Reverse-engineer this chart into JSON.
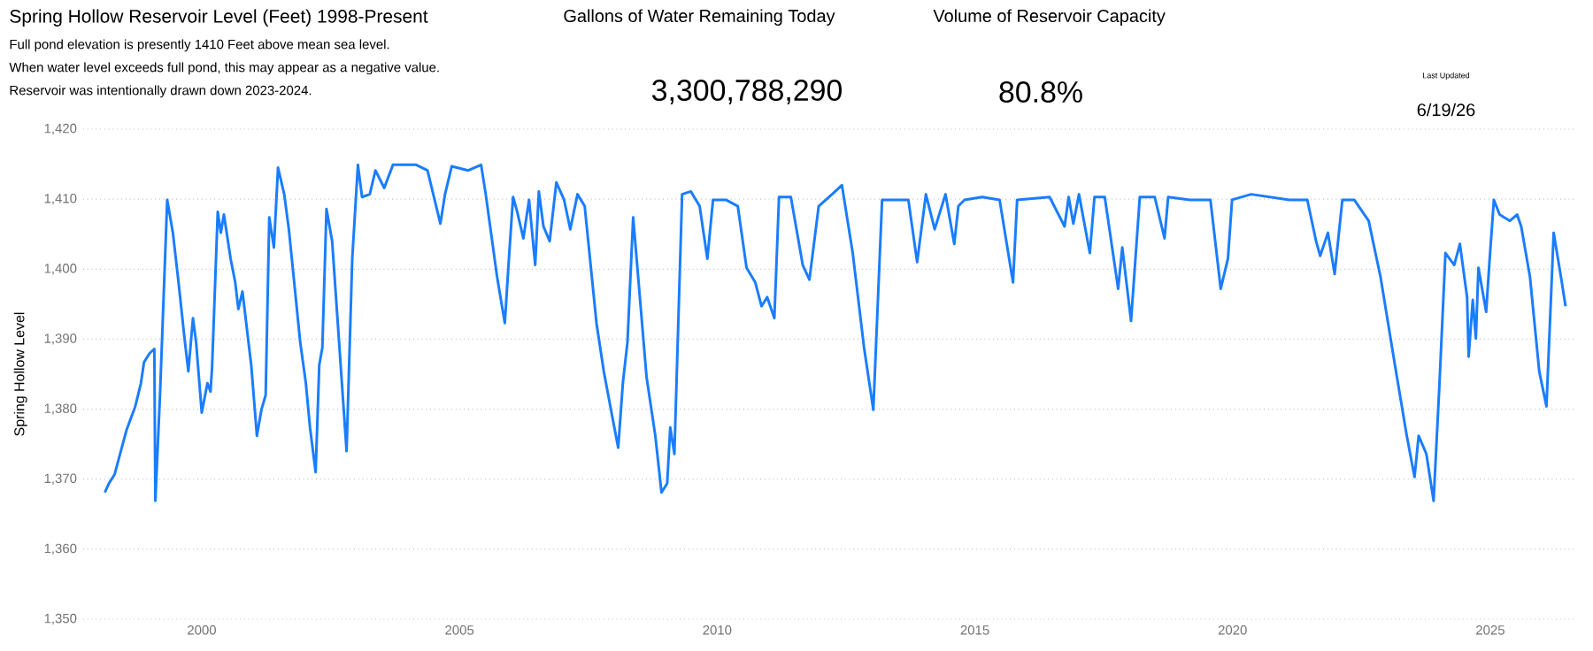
{
  "chart_data": {
    "type": "line",
    "title": "Spring Hollow Reservoir Level (Feet) 1998-Present",
    "ylabel": "Spring Hollow Level",
    "annotations": [
      "Full pond elevation is presently 1410 Feet above mean sea level.",
      "When water level exceeds full pond, this may appear as a negative value.",
      "Reservoir was intentionally drawn down 2023-2024.",
      "Gallons of Water Remaining Today",
      "3,300,788,290",
      "Volume of Reservoir Capacity",
      "80.8%",
      "Last Updated",
      "6/19/26"
    ],
    "xlim": [
      1997.7,
      2026.65
    ],
    "xticks": [
      2000,
      2005,
      2010,
      2015,
      2020,
      2025
    ],
    "ylim": [
      1350,
      1420
    ],
    "yticks": [
      {
        "value": 1350,
        "label": "1,350"
      },
      {
        "value": 1360,
        "label": "1,360"
      },
      {
        "value": 1370,
        "label": "1,370"
      },
      {
        "value": 1380,
        "label": "1,380"
      },
      {
        "value": 1390,
        "label": "1,390"
      },
      {
        "value": 1400,
        "label": "1,400"
      },
      {
        "value": 1410,
        "label": "1,410"
      },
      {
        "value": 1420,
        "label": "1,420"
      }
    ],
    "grid": "y",
    "series": [
      {
        "color": "#1a7dff",
        "x": [
          1998.12,
          1998.2,
          1998.31,
          1998.43,
          1998.54,
          1998.71,
          1998.82,
          1998.88,
          1998.99,
          1999.08,
          1999.1,
          1999.19,
          1999.33,
          1999.44,
          1999.55,
          1999.66,
          1999.74,
          1999.83,
          1999.89,
          2000.0,
          2000.11,
          2000.17,
          2000.2,
          2000.31,
          2000.37,
          2000.43,
          2000.56,
          2000.65,
          2000.71,
          2000.79,
          2000.96,
          2001.07,
          2001.16,
          2001.24,
          2001.31,
          2001.4,
          2001.48,
          2001.6,
          2001.69,
          2001.91,
          2002.02,
          2002.1,
          2002.21,
          2002.28,
          2002.34,
          2002.42,
          2002.53,
          2002.81,
          2002.92,
          2003.03,
          2003.11,
          2003.26,
          2003.37,
          2003.54,
          2003.71,
          2004.16,
          2004.38,
          2004.63,
          2004.72,
          2004.85,
          2005.17,
          2005.42,
          2005.51,
          2005.73,
          2005.88,
          2005.96,
          2006.04,
          2006.12,
          2006.24,
          2006.35,
          2006.47,
          2006.54,
          2006.63,
          2006.75,
          2006.88,
          2007.03,
          2007.15,
          2007.29,
          2007.43,
          2007.66,
          2007.8,
          2007.95,
          2008.08,
          2008.17,
          2008.26,
          2008.37,
          2008.63,
          2008.8,
          2008.92,
          2009.03,
          2009.09,
          2009.17,
          2009.32,
          2009.49,
          2009.66,
          2009.81,
          2009.92,
          2010.17,
          2010.4,
          2010.57,
          2010.74,
          2010.86,
          2010.97,
          2011.11,
          2011.2,
          2011.43,
          2011.66,
          2011.79,
          2011.97,
          2012.23,
          2012.42,
          2012.63,
          2012.85,
          2013.03,
          2013.2,
          2013.71,
          2013.88,
          2014.05,
          2014.22,
          2014.43,
          2014.6,
          2014.68,
          2014.8,
          2015.14,
          2015.48,
          2015.74,
          2015.82,
          2016.45,
          2016.74,
          2016.82,
          2016.91,
          2017.02,
          2017.23,
          2017.32,
          2017.52,
          2017.78,
          2017.86,
          2018.03,
          2018.2,
          2018.49,
          2018.68,
          2018.75,
          2019.17,
          2019.57,
          2019.77,
          2019.91,
          2019.99,
          2020.36,
          2021.1,
          2021.45,
          2021.62,
          2021.7,
          2021.85,
          2021.98,
          2022.13,
          2022.36,
          2022.64,
          2022.87,
          2023.15,
          2023.38,
          2023.53,
          2023.61,
          2023.76,
          2023.9,
          2024.01,
          2024.13,
          2024.3,
          2024.41,
          2024.55,
          2024.58,
          2024.66,
          2024.72,
          2024.77,
          2024.92,
          2024.98,
          2025.07,
          2025.18,
          2025.38,
          2025.52,
          2025.6,
          2025.77,
          2025.95,
          2026.09,
          2026.23,
          2026.38,
          2026.46
        ],
        "values": [
          1368.1,
          1369.4,
          1370.7,
          1374,
          1377,
          1380.4,
          1383.7,
          1386.7,
          1388,
          1388.6,
          1366.9,
          1382,
          1409.9,
          1405.2,
          1398.1,
          1390.5,
          1385.4,
          1393,
          1389.6,
          1379.5,
          1383.7,
          1382.5,
          1385.9,
          1408.2,
          1405.2,
          1407.8,
          1401.5,
          1398.1,
          1394.3,
          1396.8,
          1386.3,
          1376.2,
          1380,
          1382,
          1407.4,
          1403.1,
          1414.5,
          1410.7,
          1405.7,
          1389.6,
          1383.7,
          1377.4,
          1371,
          1386.3,
          1388.8,
          1408.6,
          1404,
          1374,
          1401.5,
          1414.9,
          1410.3,
          1410.7,
          1414.1,
          1411.6,
          1414.9,
          1414.9,
          1414.1,
          1406.5,
          1410.7,
          1414.7,
          1414.1,
          1414.9,
          1410.7,
          1398.9,
          1392.3,
          1401.5,
          1410.3,
          1408.2,
          1404.4,
          1409.9,
          1400.6,
          1411.1,
          1406.1,
          1404,
          1412.4,
          1409.9,
          1405.7,
          1410.7,
          1409,
          1392.2,
          1385.4,
          1379.5,
          1374.5,
          1383.7,
          1389.6,
          1407.4,
          1384.6,
          1376.2,
          1368.1,
          1369.4,
          1377.4,
          1373.6,
          1410.7,
          1411.1,
          1409,
          1401.5,
          1409.9,
          1409.9,
          1409,
          1400.2,
          1398.1,
          1394.7,
          1396,
          1393,
          1410.3,
          1410.3,
          1400.6,
          1398.5,
          1409,
          1410.7,
          1412,
          1402.3,
          1388.8,
          1379.9,
          1409.9,
          1409.9,
          1401,
          1410.7,
          1405.7,
          1410.7,
          1403.6,
          1409,
          1409.9,
          1410.3,
          1409.9,
          1398.1,
          1409.9,
          1410.3,
          1406.1,
          1410.3,
          1406.5,
          1410.7,
          1402.3,
          1410.3,
          1410.3,
          1397.2,
          1403.1,
          1392.6,
          1410.3,
          1410.3,
          1404.4,
          1410.3,
          1409.9,
          1409.9,
          1397.2,
          1401.5,
          1409.9,
          1410.7,
          1409.9,
          1409.9,
          1404,
          1401.9,
          1405.2,
          1399.3,
          1409.9,
          1409.9,
          1406.9,
          1398.9,
          1386.3,
          1376.2,
          1370.3,
          1376.2,
          1373.6,
          1366.9,
          1383,
          1402.3,
          1400.6,
          1403.6,
          1396,
          1387.5,
          1395.6,
          1390.1,
          1400.2,
          1393.9,
          1400.6,
          1409.9,
          1407.8,
          1406.9,
          1407.8,
          1406.1,
          1398.9,
          1385.4,
          1380.4,
          1405.2,
          1398.5,
          1394.7
        ]
      }
    ]
  }
}
